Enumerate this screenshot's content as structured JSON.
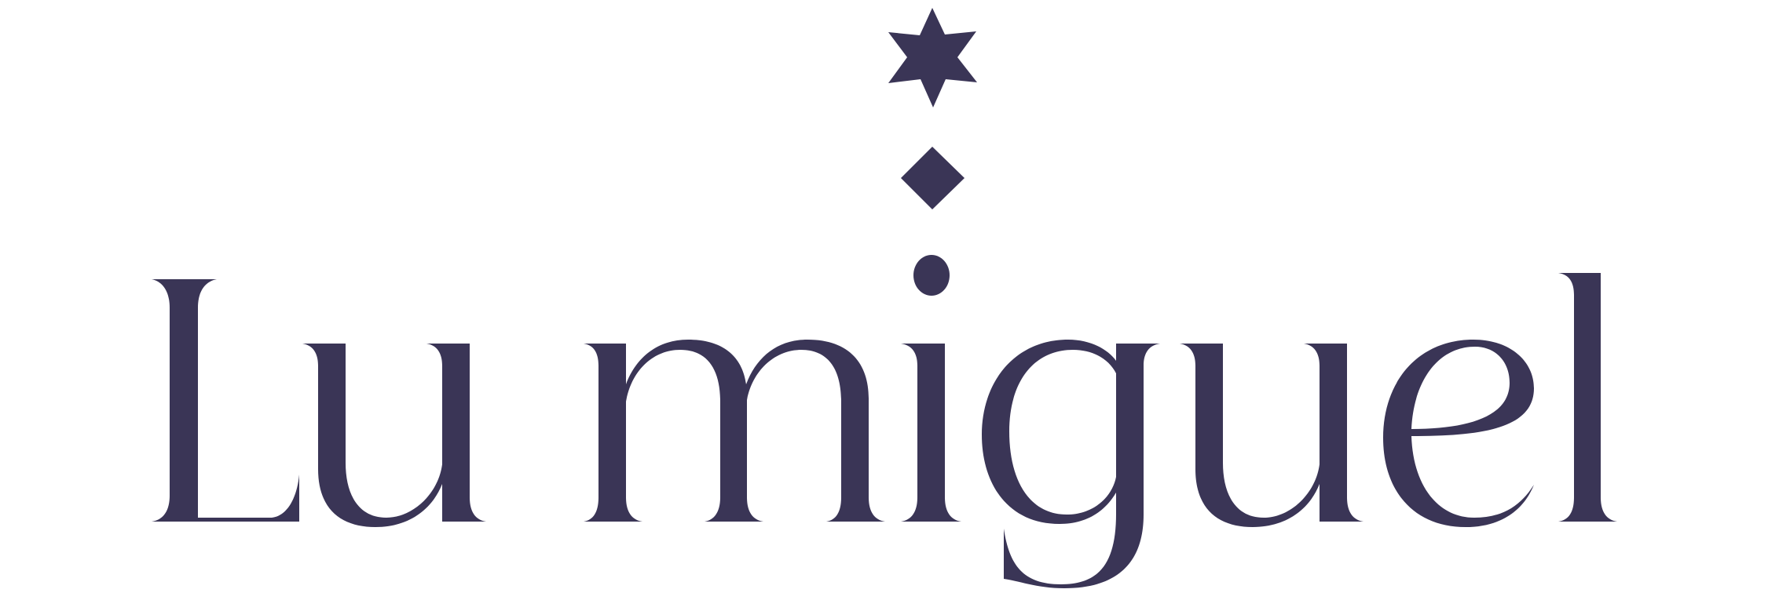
{
  "logo": {
    "wordmark": "Lu miguel",
    "ornaments": [
      "six-pointed-star-icon",
      "diamond-icon",
      "dot-icon"
    ],
    "colors": {
      "ink": "#3A3556",
      "background": "#FFFFFF"
    }
  }
}
